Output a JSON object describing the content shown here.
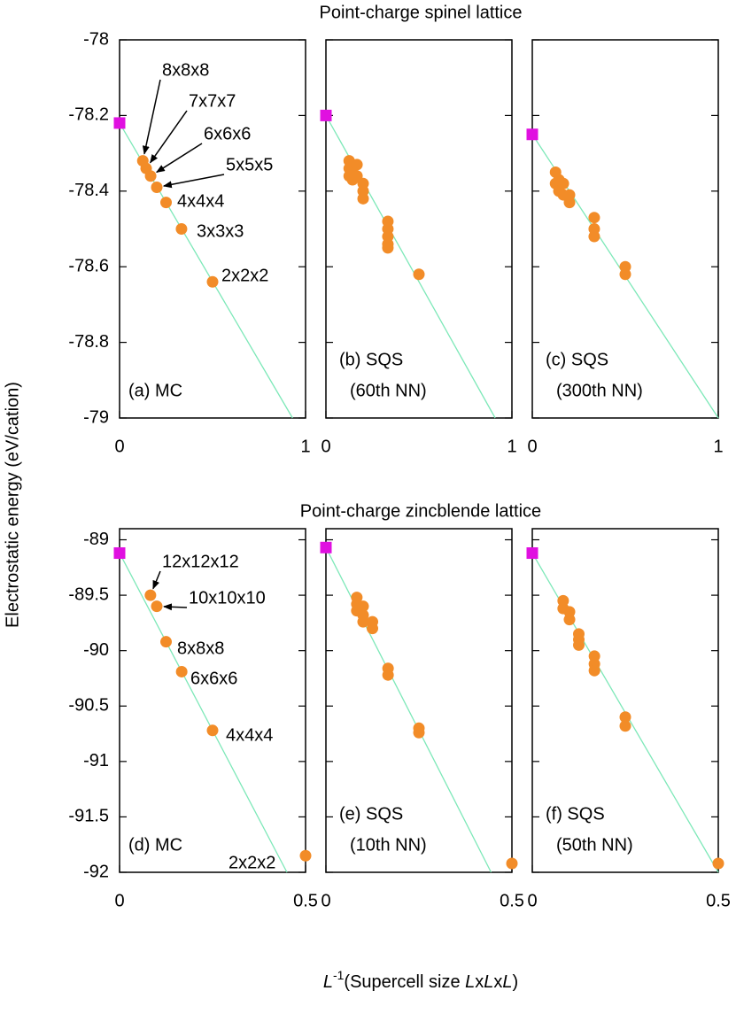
{
  "chart_data": [
    {
      "type": "scatter",
      "title": "Point-charge spinel lattice",
      "label": [
        "(a) MC"
      ],
      "xlim": [
        0,
        1
      ],
      "xticks": [
        0,
        1
      ],
      "ylim": [
        -79,
        -78
      ],
      "yticks": [
        -78,
        -78.2,
        -78.4,
        -78.6,
        -78.8,
        -79
      ],
      "x": [
        0.5,
        0.333,
        0.25,
        0.2,
        0.167,
        0.143,
        0.125
      ],
      "values": [
        -78.64,
        -78.5,
        -78.43,
        -78.39,
        -78.36,
        -78.34,
        -78.32
      ],
      "labels": [
        "2x2x2",
        "3x3x3",
        "4x4x4",
        "5x5x5",
        "6x6x6",
        "7x7x7",
        "8x8x8"
      ],
      "color": "#f28c28",
      "extrapolated": {
        "x": 0,
        "y": -78.22,
        "color": "#e010e0"
      },
      "fit": {
        "x": [
          0,
          0.93
        ],
        "y": [
          -78.22,
          -79
        ],
        "color": "#7de8b8"
      }
    },
    {
      "type": "scatter",
      "label": [
        "(b) SQS",
        "(60th NN)"
      ],
      "xlim": [
        0,
        1
      ],
      "xticks": [
        0,
        1
      ],
      "ylim": [
        -79,
        -78
      ],
      "yticks": [
        -78,
        -78.2,
        -78.4,
        -78.6,
        -78.8,
        -79
      ],
      "x": [
        0.125,
        0.125,
        0.125,
        0.143,
        0.143,
        0.143,
        0.167,
        0.167,
        0.2,
        0.2,
        0.2,
        0.333,
        0.333,
        0.333,
        0.333,
        0.333,
        0.5
      ],
      "values": [
        -78.32,
        -78.34,
        -78.36,
        -78.33,
        -78.35,
        -78.37,
        -78.33,
        -78.36,
        -78.38,
        -78.4,
        -78.42,
        -78.48,
        -78.5,
        -78.52,
        -78.54,
        -78.55,
        -78.62
      ],
      "color": "#f28c28",
      "extrapolated": {
        "x": 0,
        "y": -78.2,
        "color": "#e010e0"
      },
      "fit": {
        "x": [
          0,
          0.91
        ],
        "y": [
          -78.2,
          -79
        ],
        "color": "#7de8b8"
      }
    },
    {
      "type": "scatter",
      "label": [
        "(c) SQS",
        "(300th NN)"
      ],
      "xlim": [
        0,
        1
      ],
      "xticks": [
        0,
        1
      ],
      "ylim": [
        -79,
        -78
      ],
      "yticks": [
        -78,
        -78.2,
        -78.4,
        -78.6,
        -78.8,
        -79
      ],
      "x": [
        0.125,
        0.125,
        0.143,
        0.143,
        0.167,
        0.167,
        0.2,
        0.2,
        0.333,
        0.333,
        0.333,
        0.5,
        0.5
      ],
      "values": [
        -78.35,
        -78.38,
        -78.37,
        -78.4,
        -78.38,
        -78.41,
        -78.41,
        -78.43,
        -78.47,
        -78.5,
        -78.52,
        -78.6,
        -78.62
      ],
      "color": "#f28c28",
      "extrapolated": {
        "x": 0,
        "y": -78.25,
        "color": "#e010e0"
      },
      "fit": {
        "x": [
          0,
          1
        ],
        "y": [
          -78.25,
          -79
        ],
        "color": "#7de8b8"
      }
    },
    {
      "type": "scatter",
      "title": "Point-charge zincblende lattice",
      "label": [
        "(d) MC"
      ],
      "xlim": [
        0,
        0.5
      ],
      "xticks": [
        0,
        0.5
      ],
      "ylim": [
        -92,
        -88.9
      ],
      "yticks": [
        -89,
        -89.5,
        -90,
        -90.5,
        -91,
        -91.5,
        -92
      ],
      "x": [
        0.5,
        0.25,
        0.167,
        0.125,
        0.1,
        0.083
      ],
      "values": [
        -91.85,
        -90.72,
        -90.19,
        -89.92,
        -89.6,
        -89.5
      ],
      "labels": [
        "2x2x2",
        "4x4x4",
        "6x6x6",
        "8x8x8",
        "10x10x10",
        "12x12x12"
      ],
      "color": "#f28c28",
      "extrapolated": {
        "x": 0,
        "y": -89.12,
        "color": "#e010e0"
      },
      "fit": {
        "x": [
          0,
          0.45
        ],
        "y": [
          -89.12,
          -92
        ],
        "color": "#7de8b8"
      }
    },
    {
      "type": "scatter",
      "label": [
        "(e) SQS",
        "(10th NN)"
      ],
      "xlim": [
        0,
        0.5
      ],
      "xticks": [
        0,
        0.5
      ],
      "ylim": [
        -92,
        -88.9
      ],
      "yticks": [
        -89,
        -89.5,
        -90,
        -90.5,
        -91,
        -91.5,
        -92
      ],
      "x": [
        0.083,
        0.083,
        0.083,
        0.1,
        0.1,
        0.1,
        0.125,
        0.125,
        0.167,
        0.167,
        0.25,
        0.25,
        0.5
      ],
      "values": [
        -89.52,
        -89.58,
        -89.64,
        -89.6,
        -89.68,
        -89.74,
        -89.74,
        -89.8,
        -90.16,
        -90.22,
        -90.7,
        -90.74,
        -91.92
      ],
      "color": "#f28c28",
      "extrapolated": {
        "x": 0,
        "y": -89.07,
        "color": "#e010e0"
      },
      "fit": {
        "x": [
          0,
          0.444
        ],
        "y": [
          -89.07,
          -92
        ],
        "color": "#7de8b8"
      }
    },
    {
      "type": "scatter",
      "label": [
        "(f) SQS",
        "(50th NN)"
      ],
      "xlim": [
        0,
        0.5
      ],
      "xticks": [
        0,
        0.5
      ],
      "ylim": [
        -92,
        -88.9
      ],
      "yticks": [
        -89,
        -89.5,
        -90,
        -90.5,
        -91,
        -91.5,
        -92
      ],
      "x": [
        0.083,
        0.083,
        0.1,
        0.1,
        0.125,
        0.125,
        0.125,
        0.167,
        0.167,
        0.167,
        0.25,
        0.25,
        0.5
      ],
      "values": [
        -89.55,
        -89.62,
        -89.65,
        -89.72,
        -89.85,
        -89.9,
        -89.95,
        -90.05,
        -90.12,
        -90.18,
        -90.6,
        -90.68,
        -91.92
      ],
      "color": "#f28c28",
      "extrapolated": {
        "x": 0,
        "y": -89.12,
        "color": "#e010e0"
      },
      "fit": {
        "x": [
          0,
          0.5
        ],
        "y": [
          -89.12,
          -92
        ],
        "color": "#7de8b8"
      }
    }
  ],
  "ylabel": "Electrostatic energy (eV/cation)",
  "xlabel": [
    {
      "text": "L",
      "style": "italic"
    },
    {
      "text": "-1",
      "style": "sup"
    },
    {
      "text": "(Supercell size ",
      "style": "normal"
    },
    {
      "text": "L",
      "style": "italic"
    },
    {
      "text": "x",
      "style": "normal"
    },
    {
      "text": "L",
      "style": "italic"
    },
    {
      "text": "x",
      "style": "normal"
    },
    {
      "text": "L",
      "style": "italic"
    },
    {
      "text": ")",
      "style": "normal"
    }
  ]
}
